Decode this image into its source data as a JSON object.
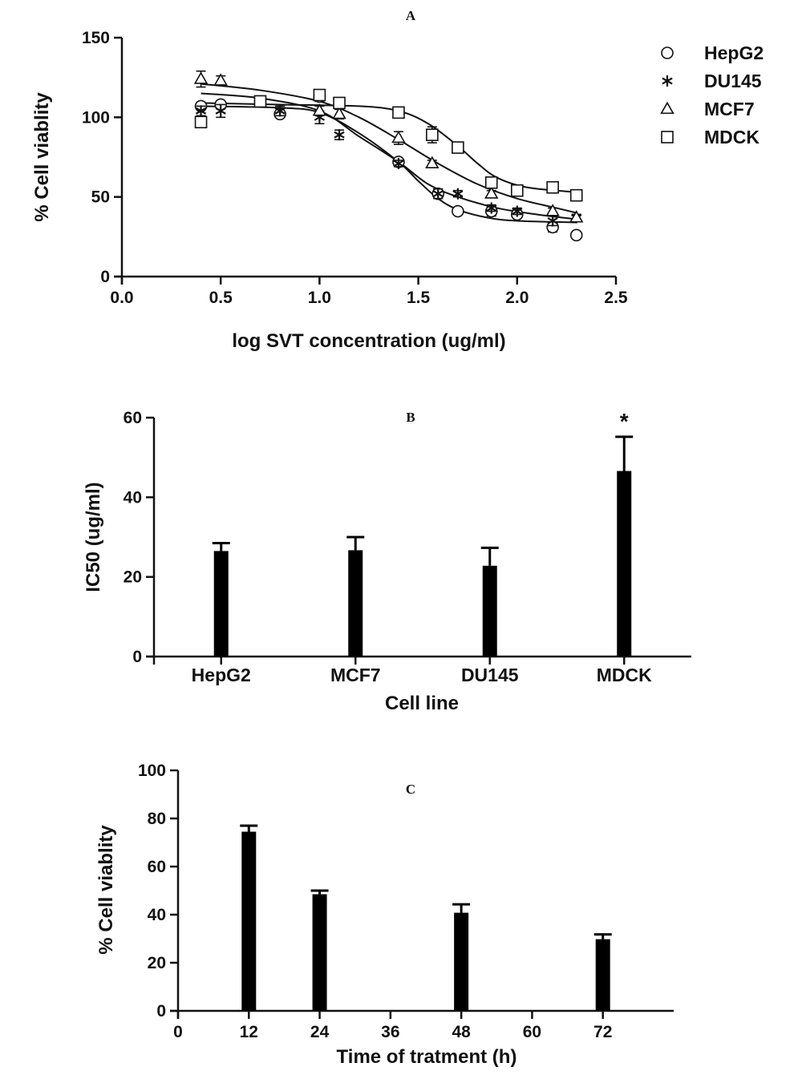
{
  "chart_data": [
    {
      "panel": "A",
      "type": "scatter",
      "xlabel": "log SVT concentration (ug/ml)",
      "ylabel": "% Cell viablity",
      "xlim": [
        0.0,
        2.5
      ],
      "ylim": [
        0,
        150
      ],
      "xticks": [
        "0.0",
        "0.5",
        "1.0",
        "1.5",
        "2.0",
        "2.5"
      ],
      "yticks": [
        "0",
        "50",
        "100",
        "150"
      ],
      "legend_position": "top-right",
      "series": [
        {
          "name": "HepG2",
          "marker": "circle",
          "points": [
            [
              0.4,
              107
            ],
            [
              0.5,
              108
            ],
            [
              0.8,
              102
            ],
            [
              1.0,
              113
            ],
            [
              1.4,
              72
            ],
            [
              1.6,
              52
            ],
            [
              1.7,
              41
            ],
            [
              1.87,
              41
            ],
            [
              2.0,
              39
            ],
            [
              2.18,
              31
            ],
            [
              2.3,
              26
            ]
          ],
          "errors": [
            2,
            2,
            2,
            3,
            2,
            3,
            2,
            3,
            2,
            3,
            2
          ],
          "fit": [
            [
              0.4,
              107
            ],
            [
              0.8,
              106
            ],
            [
              1.0,
              103
            ],
            [
              1.2,
              90
            ],
            [
              1.4,
              72
            ],
            [
              1.5,
              60
            ],
            [
              1.6,
              49
            ],
            [
              1.7,
              42
            ],
            [
              1.85,
              37
            ],
            [
              2.0,
              35
            ],
            [
              2.3,
              34
            ]
          ]
        },
        {
          "name": "DU145",
          "marker": "asterisk",
          "points": [
            [
              0.4,
              104
            ],
            [
              0.5,
              104
            ],
            [
              0.8,
              104
            ],
            [
              1.0,
              100
            ],
            [
              1.1,
              89
            ],
            [
              1.4,
              71
            ],
            [
              1.6,
              52
            ],
            [
              1.7,
              52
            ],
            [
              1.87,
              43
            ],
            [
              2.0,
              41
            ],
            [
              2.18,
              35
            ],
            [
              2.3,
              37
            ]
          ],
          "errors": [
            3,
            4,
            3,
            4,
            3,
            2,
            3,
            2,
            2,
            2,
            3,
            2
          ],
          "fit": [
            [
              0.4,
              115
            ],
            [
              0.7,
              112
            ],
            [
              1.0,
              104
            ],
            [
              1.2,
              88
            ],
            [
              1.4,
              72
            ],
            [
              1.55,
              58
            ],
            [
              1.7,
              50
            ],
            [
              1.9,
              43
            ],
            [
              2.1,
              39
            ],
            [
              2.3,
              36
            ]
          ]
        },
        {
          "name": "MCF7",
          "marker": "triangle",
          "points": [
            [
              0.4,
              124
            ],
            [
              0.5,
              123
            ],
            [
              1.0,
              104
            ],
            [
              1.1,
              102
            ],
            [
              1.4,
              87
            ],
            [
              1.57,
              71
            ],
            [
              1.87,
              52
            ],
            [
              2.18,
              41
            ],
            [
              2.3,
              37
            ]
          ],
          "errors": [
            5,
            3,
            3,
            3,
            4,
            2,
            2,
            2,
            2
          ],
          "fit": [
            [
              0.4,
              121
            ],
            [
              0.7,
              117
            ],
            [
              1.0,
              110
            ],
            [
              1.2,
              100
            ],
            [
              1.4,
              86
            ],
            [
              1.6,
              71
            ],
            [
              1.8,
              58
            ],
            [
              2.0,
              49
            ],
            [
              2.2,
              43
            ],
            [
              2.3,
              40
            ]
          ]
        },
        {
          "name": "MDCK",
          "marker": "square",
          "points": [
            [
              0.4,
              97
            ],
            [
              0.7,
              110
            ],
            [
              1.0,
              114
            ],
            [
              1.1,
              109
            ],
            [
              1.4,
              103
            ],
            [
              1.57,
              89
            ],
            [
              1.7,
              81
            ],
            [
              1.87,
              59
            ],
            [
              2.0,
              54
            ],
            [
              2.18,
              56
            ],
            [
              2.3,
              51
            ]
          ],
          "errors": [
            2,
            3,
            3,
            2,
            2,
            5,
            2,
            2,
            2,
            2,
            2
          ],
          "fit": [
            [
              0.4,
              109
            ],
            [
              0.8,
              108
            ],
            [
              1.2,
              107
            ],
            [
              1.4,
              104
            ],
            [
              1.55,
              96
            ],
            [
              1.7,
              82
            ],
            [
              1.8,
              71
            ],
            [
              1.9,
              62
            ],
            [
              2.05,
              56
            ],
            [
              2.3,
              53
            ]
          ]
        }
      ]
    },
    {
      "panel": "B",
      "type": "bar",
      "xlabel": "Cell line",
      "ylabel": "IC50 (ug/ml)",
      "ylim": [
        0,
        60
      ],
      "yticks": [
        "0",
        "20",
        "40",
        "60"
      ],
      "categories": [
        "HepG2",
        "MCF7",
        "DU145",
        "MDCK"
      ],
      "values": [
        26.5,
        26.7,
        22.8,
        46.6
      ],
      "errors": [
        2.0,
        3.3,
        4.5,
        8.6
      ],
      "annotations": [
        {
          "category": "MDCK",
          "text": "*"
        }
      ]
    },
    {
      "panel": "C",
      "type": "bar",
      "xlabel": "Time of tratment (h)",
      "ylabel": "% Cell viablity",
      "xlim": [
        0,
        84
      ],
      "ylim": [
        0,
        100
      ],
      "xticks": [
        "0",
        "12",
        "24",
        "36",
        "48",
        "60",
        "72"
      ],
      "yticks": [
        "0",
        "20",
        "40",
        "60",
        "80",
        "100"
      ],
      "x": [
        12,
        24,
        48,
        72
      ],
      "values": [
        74.5,
        48.5,
        40.8,
        29.8
      ],
      "errors": [
        2.5,
        1.5,
        3.5,
        2.0
      ]
    }
  ]
}
